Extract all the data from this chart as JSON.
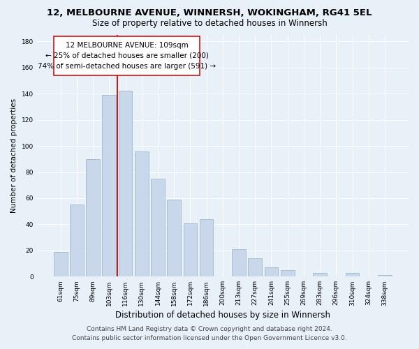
{
  "title": "12, MELBOURNE AVENUE, WINNERSH, WOKINGHAM, RG41 5EL",
  "subtitle": "Size of property relative to detached houses in Winnersh",
  "xlabel": "Distribution of detached houses by size in Winnersh",
  "ylabel": "Number of detached properties",
  "categories": [
    "61sqm",
    "75sqm",
    "89sqm",
    "103sqm",
    "116sqm",
    "130sqm",
    "144sqm",
    "158sqm",
    "172sqm",
    "186sqm",
    "200sqm",
    "213sqm",
    "227sqm",
    "241sqm",
    "255sqm",
    "269sqm",
    "283sqm",
    "296sqm",
    "310sqm",
    "324sqm",
    "338sqm"
  ],
  "values": [
    19,
    55,
    90,
    139,
    142,
    96,
    75,
    59,
    41,
    44,
    0,
    21,
    14,
    7,
    5,
    0,
    3,
    0,
    3,
    0,
    1
  ],
  "bar_color": "#c8d8ea",
  "bar_edge_color": "#a0b8cc",
  "vline_color": "#cc0000",
  "annotation_line1": "12 MELBOURNE AVENUE: 109sqm",
  "annotation_line2": "← 25% of detached houses are smaller (200)",
  "annotation_line3": "74% of semi-detached houses are larger (591) →",
  "annotation_box_color": "white",
  "annotation_box_edge": "#cc0000",
  "ylim": [
    0,
    185
  ],
  "yticks": [
    0,
    20,
    40,
    60,
    80,
    100,
    120,
    140,
    160,
    180
  ],
  "footer_line1": "Contains HM Land Registry data © Crown copyright and database right 2024.",
  "footer_line2": "Contains public sector information licensed under the Open Government Licence v3.0.",
  "background_color": "#e8f0f8",
  "grid_color": "white",
  "title_fontsize": 9.5,
  "subtitle_fontsize": 8.5,
  "xlabel_fontsize": 8.5,
  "ylabel_fontsize": 7.5,
  "tick_fontsize": 6.5,
  "annotation_fontsize": 7.5,
  "footer_fontsize": 6.5
}
